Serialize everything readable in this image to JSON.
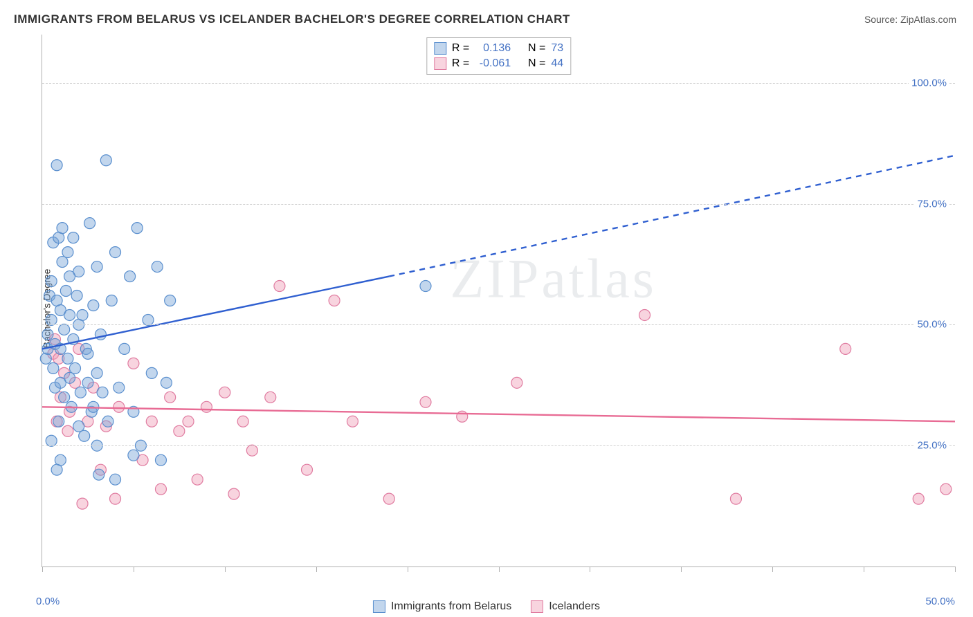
{
  "title": "IMMIGRANTS FROM BELARUS VS ICELANDER BACHELOR'S DEGREE CORRELATION CHART",
  "source_label": "Source: ZipAtlas.com",
  "watermark": "ZIPatlas",
  "y_axis_label": "Bachelor's Degree",
  "chart": {
    "type": "scatter",
    "xlim": [
      0,
      50
    ],
    "ylim": [
      0,
      110
    ],
    "x_ticks": [
      0,
      5,
      10,
      15,
      20,
      25,
      30,
      35,
      40,
      45,
      50
    ],
    "x_labels_shown": {
      "0": "0.0%",
      "50": "50.0%"
    },
    "y_gridlines": [
      25,
      50,
      75,
      100
    ],
    "y_labels": {
      "25": "25.0%",
      "50": "50.0%",
      "75": "75.0%",
      "100": "100.0%"
    },
    "grid_color": "#d0d0d0",
    "axis_color": "#b0b0b0",
    "background_color": "#ffffff",
    "label_color": "#4472c4",
    "text_color": "#333333",
    "marker_radius": 8,
    "marker_stroke_width": 1.2,
    "trend_line_width": 2.4
  },
  "series": {
    "belarus": {
      "label": "Immigrants from Belarus",
      "fill": "rgba(120,165,216,0.45)",
      "stroke": "#5a8fce",
      "line_color": "#2f5fd0",
      "R": "0.136",
      "N": "73",
      "trend": {
        "x1": 0,
        "y1": 45,
        "x2_solid": 19,
        "y2_solid": 60,
        "x2_dash": 50,
        "y2_dash": 85
      },
      "points": [
        [
          0.2,
          43
        ],
        [
          0.3,
          45
        ],
        [
          0.3,
          48
        ],
        [
          0.4,
          56
        ],
        [
          0.5,
          51
        ],
        [
          0.5,
          59
        ],
        [
          0.6,
          67
        ],
        [
          0.6,
          41
        ],
        [
          0.7,
          37
        ],
        [
          0.7,
          46
        ],
        [
          0.8,
          55
        ],
        [
          0.8,
          83
        ],
        [
          0.9,
          30
        ],
        [
          0.9,
          68
        ],
        [
          1.0,
          45
        ],
        [
          1.0,
          53
        ],
        [
          1.1,
          63
        ],
        [
          1.1,
          70
        ],
        [
          1.2,
          35
        ],
        [
          1.2,
          49
        ],
        [
          1.3,
          57
        ],
        [
          1.4,
          43
        ],
        [
          1.4,
          65
        ],
        [
          1.5,
          39
        ],
        [
          1.5,
          52
        ],
        [
          1.6,
          33
        ],
        [
          1.7,
          47
        ],
        [
          1.7,
          68
        ],
        [
          1.8,
          41
        ],
        [
          1.9,
          56
        ],
        [
          2.0,
          29
        ],
        [
          2.0,
          61
        ],
        [
          2.1,
          36
        ],
        [
          2.2,
          52
        ],
        [
          2.3,
          27
        ],
        [
          2.4,
          45
        ],
        [
          2.5,
          38
        ],
        [
          2.6,
          71
        ],
        [
          2.7,
          32
        ],
        [
          2.8,
          54
        ],
        [
          3.0,
          25
        ],
        [
          3.0,
          62
        ],
        [
          3.1,
          19
        ],
        [
          3.2,
          48
        ],
        [
          3.3,
          36
        ],
        [
          3.5,
          84
        ],
        [
          3.6,
          30
        ],
        [
          3.8,
          55
        ],
        [
          4.0,
          65
        ],
        [
          4.2,
          37
        ],
        [
          4.5,
          45
        ],
        [
          4.8,
          60
        ],
        [
          5.0,
          32
        ],
        [
          5.2,
          70
        ],
        [
          5.4,
          25
        ],
        [
          5.8,
          51
        ],
        [
          6.0,
          40
        ],
        [
          6.3,
          62
        ],
        [
          6.5,
          22
        ],
        [
          7.0,
          55
        ],
        [
          4.0,
          18
        ],
        [
          3.0,
          40
        ],
        [
          2.5,
          44
        ],
        [
          2.0,
          50
        ],
        [
          1.5,
          60
        ],
        [
          1.0,
          22
        ],
        [
          0.5,
          26
        ],
        [
          0.8,
          20
        ],
        [
          1.0,
          38
        ],
        [
          2.8,
          33
        ],
        [
          6.8,
          38
        ],
        [
          5.0,
          23
        ],
        [
          21.0,
          58
        ]
      ]
    },
    "icelanders": {
      "label": "Icelanders",
      "fill": "rgba(240,160,185,0.45)",
      "stroke": "#e07ba0",
      "line_color": "#e86b94",
      "R": "-0.061",
      "N": "44",
      "trend": {
        "x1": 0,
        "y1": 33,
        "x2": 50,
        "y2": 30
      },
      "points": [
        [
          0.6,
          44
        ],
        [
          0.7,
          47
        ],
        [
          0.8,
          30
        ],
        [
          0.9,
          43
        ],
        [
          1.0,
          35
        ],
        [
          1.2,
          40
        ],
        [
          1.4,
          28
        ],
        [
          1.5,
          32
        ],
        [
          1.8,
          38
        ],
        [
          2.0,
          45
        ],
        [
          2.5,
          30
        ],
        [
          2.8,
          37
        ],
        [
          3.2,
          20
        ],
        [
          3.5,
          29
        ],
        [
          4.0,
          14
        ],
        [
          4.2,
          33
        ],
        [
          5.0,
          42
        ],
        [
          5.5,
          22
        ],
        [
          6.0,
          30
        ],
        [
          6.5,
          16
        ],
        [
          7.0,
          35
        ],
        [
          7.5,
          28
        ],
        [
          8.0,
          30
        ],
        [
          8.5,
          18
        ],
        [
          9.0,
          33
        ],
        [
          10.0,
          36
        ],
        [
          10.5,
          15
        ],
        [
          11.0,
          30
        ],
        [
          11.5,
          24
        ],
        [
          12.5,
          35
        ],
        [
          13.0,
          58
        ],
        [
          14.5,
          20
        ],
        [
          16.0,
          55
        ],
        [
          17.0,
          30
        ],
        [
          19.0,
          14
        ],
        [
          21.0,
          34
        ],
        [
          23.0,
          31
        ],
        [
          26.0,
          38
        ],
        [
          33.0,
          52
        ],
        [
          38.0,
          14
        ],
        [
          44.0,
          45
        ],
        [
          48.0,
          14
        ],
        [
          49.5,
          16
        ],
        [
          2.2,
          13
        ]
      ]
    }
  },
  "top_legend": {
    "r_label": "R =",
    "n_label": "N ="
  }
}
